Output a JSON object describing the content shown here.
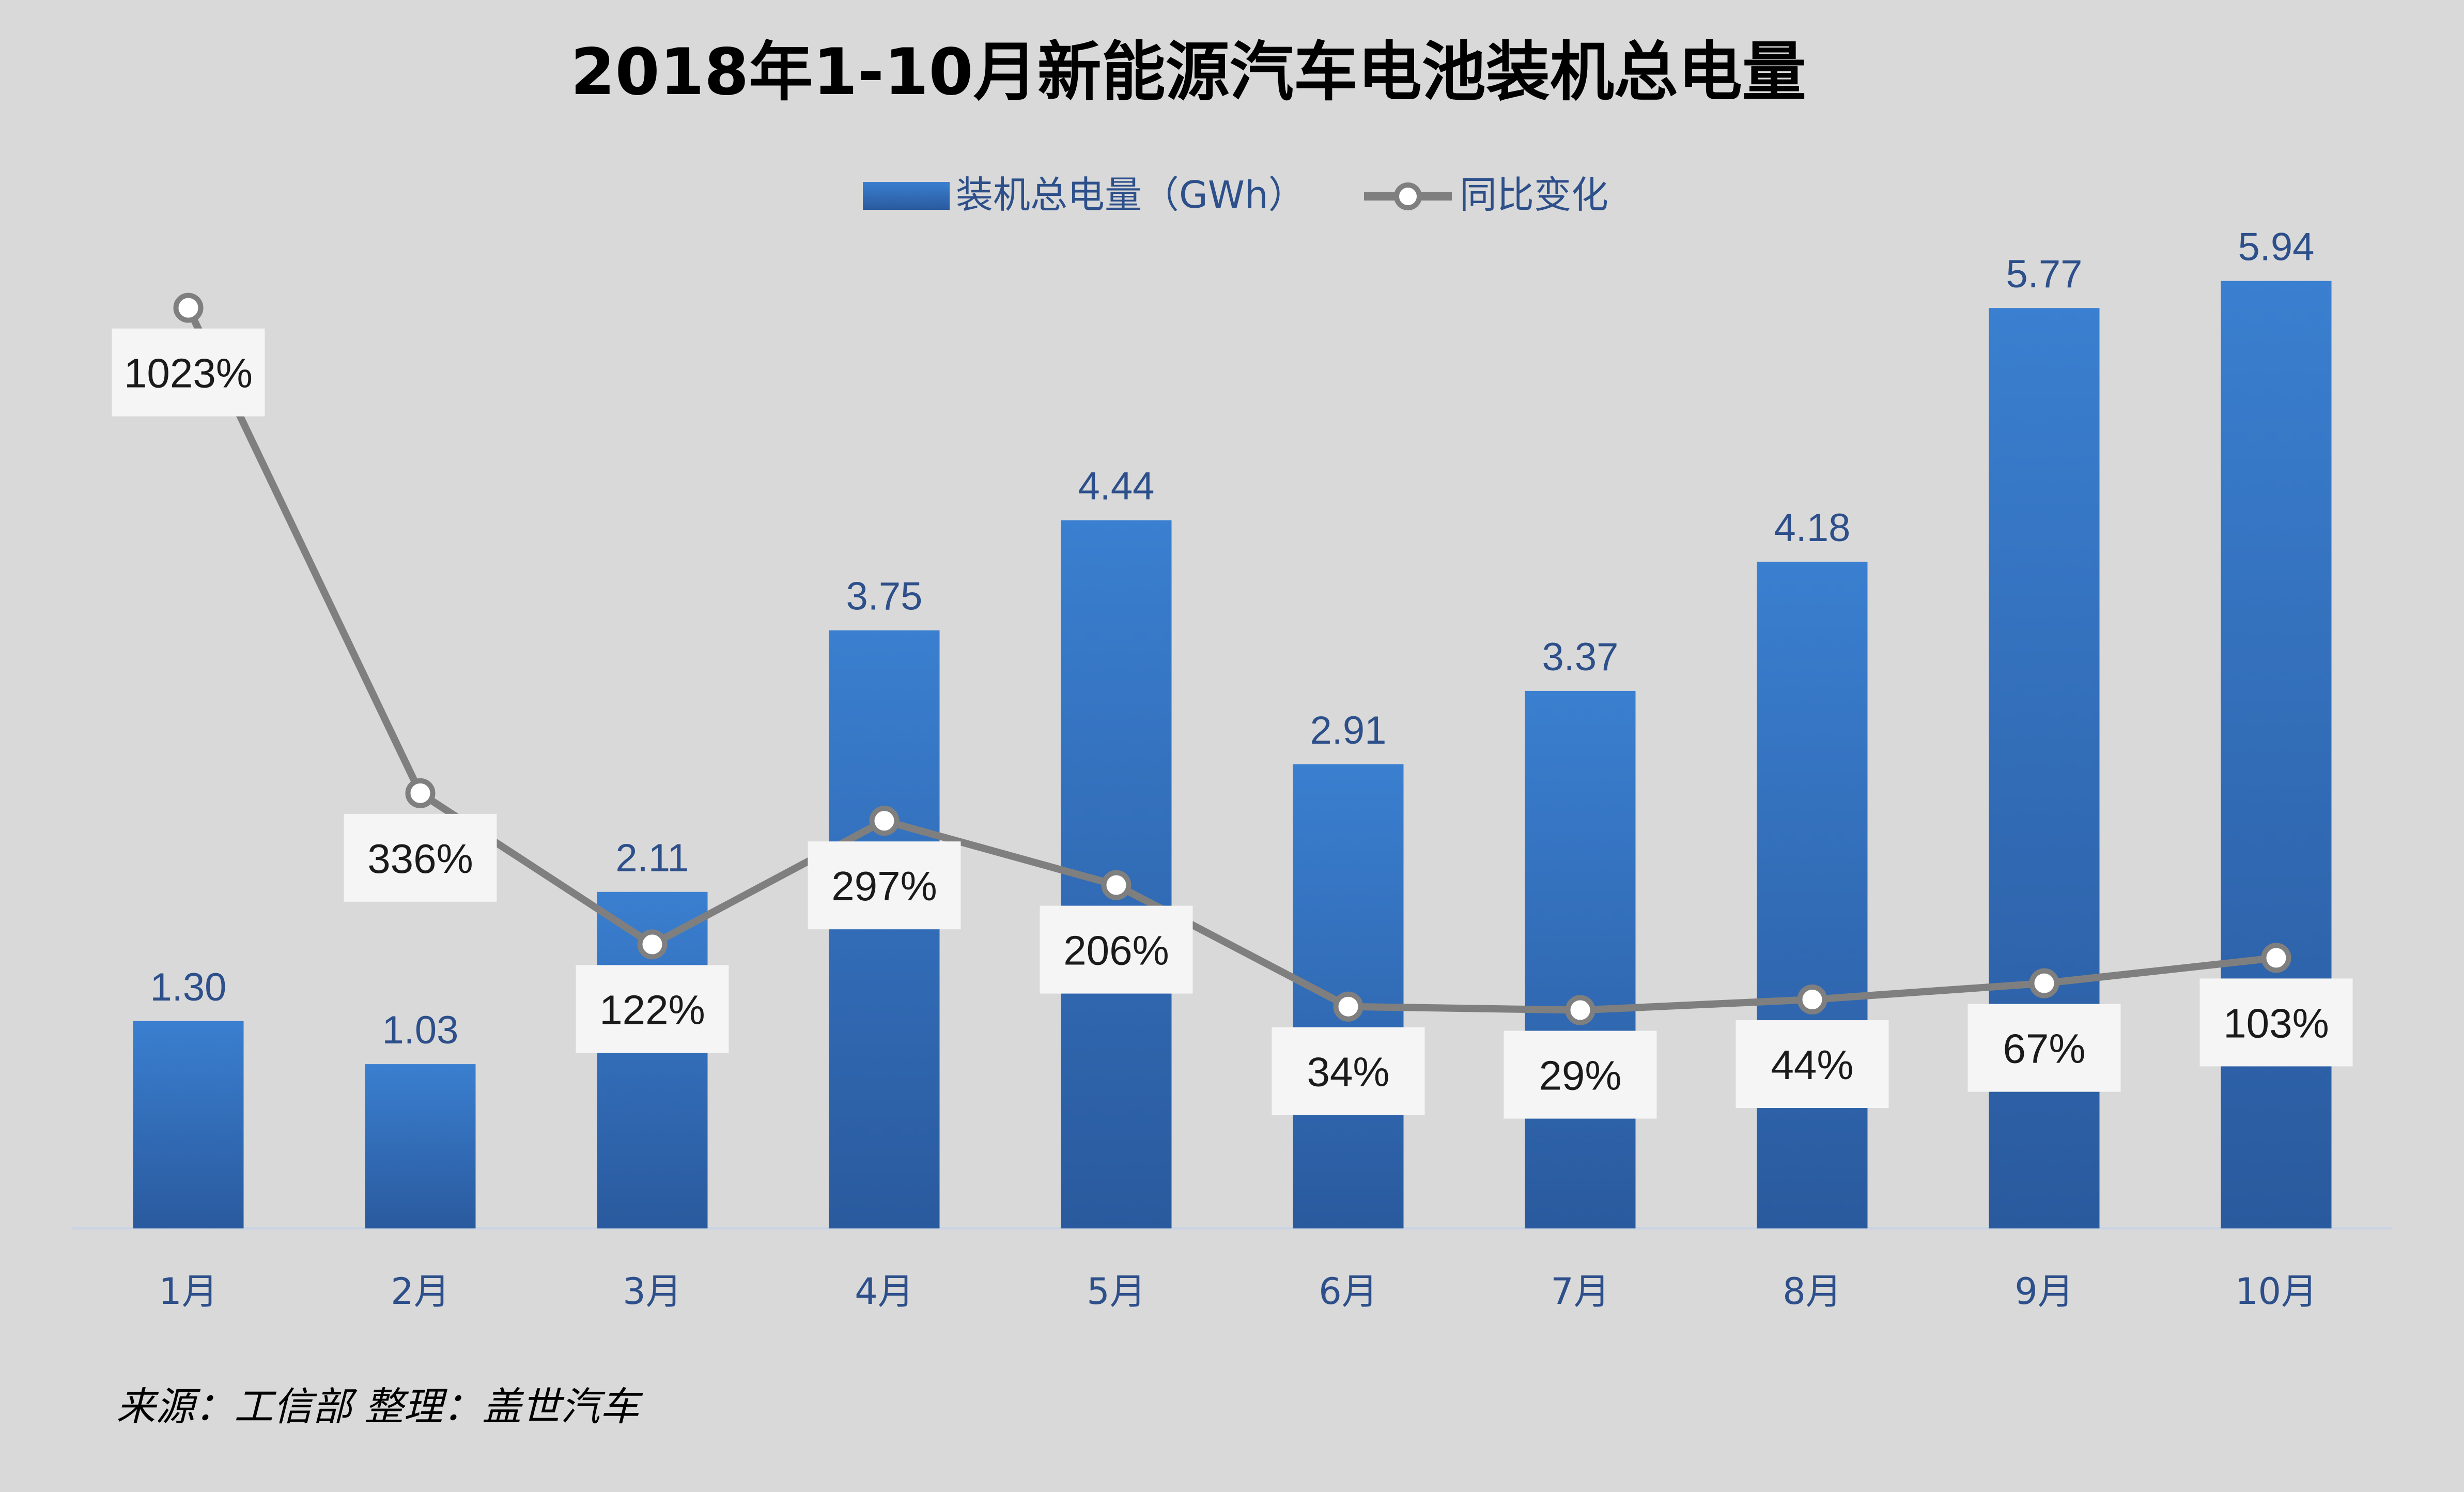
{
  "chart_data": {
    "type": "bar",
    "title": "2018年1-10月新能源汽车电池装机总电量",
    "categories": [
      "1月",
      "2月",
      "3月",
      "4月",
      "5月",
      "6月",
      "7月",
      "8月",
      "9月",
      "10月"
    ],
    "series": [
      {
        "name": "装机总电量（GWh）",
        "type": "bar",
        "values": [
          1.3,
          1.03,
          2.11,
          3.75,
          4.44,
          2.91,
          3.37,
          4.18,
          5.77,
          5.94
        ],
        "labels": [
          "1.30",
          "1.03",
          "2.11",
          "3.75",
          "4.44",
          "2.91",
          "3.37",
          "4.18",
          "5.77",
          "5.94"
        ],
        "color": "#2f6db5"
      },
      {
        "name": "同比变化",
        "type": "line",
        "values": [
          1023,
          336,
          122,
          297,
          206,
          34,
          29,
          44,
          67,
          103
        ],
        "labels": [
          "1023%",
          "336%",
          "122%",
          "297%",
          "206%",
          "34%",
          "29%",
          "44%",
          "67%",
          "103%"
        ],
        "unit": "%",
        "color": "#7f7f7f"
      }
    ],
    "bar_axis_range": [
      0,
      6.6
    ],
    "line_axis_range": [
      -280,
      1210
    ],
    "grid": false,
    "legend_position": "top-center",
    "source_note": "来源：工信部  整理：盖世汽车"
  },
  "colors": {
    "background": "#d9d9d9",
    "bar_top": "#3a7fd0",
    "bar_bottom": "#2a5a9e",
    "line": "#7f7f7f",
    "label_text": "#2d4f8a"
  }
}
